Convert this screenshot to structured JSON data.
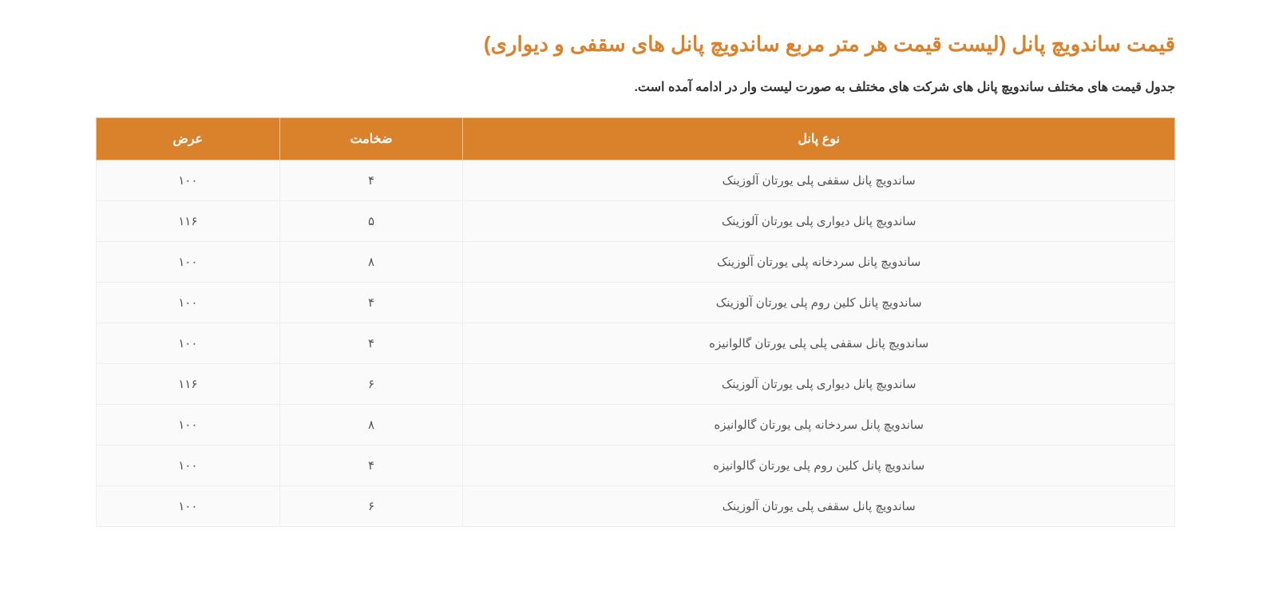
{
  "title": "قیمت ساندویچ پانل (لیست قیمت هر متر مربع ساندویچ پانل های سقفی و دیواری)",
  "intro": "جدول قیمت های مختلف ساندویچ پانل های شرکت های مختلف به صورت لیست وار در ادامه آمده است.",
  "table": {
    "columns": [
      "نوع پانل",
      "ضخامت",
      "عرض"
    ],
    "rows": [
      {
        "type": "ساندویچ پانل سقفی پلی یورتان آلوزینک",
        "thickness": "۴",
        "width": "۱۰۰"
      },
      {
        "type": "ساندویچ پانل دیواری پلی یورتان آلوزینک",
        "thickness": "۵",
        "width": "۱۱۶"
      },
      {
        "type": "ساندویچ پانل سردخانه پلی یورتان آلوزینک",
        "thickness": "۸",
        "width": "۱۰۰"
      },
      {
        "type": "ساندویچ پانل کلین روم پلی یورتان آلوزینک",
        "thickness": "۴",
        "width": "۱۰۰"
      },
      {
        "type": "ساندویچ پانل سقفی پلی پلی یورتان گالوانیزه",
        "thickness": "۴",
        "width": "۱۰۰"
      },
      {
        "type": "ساندویچ پانل دیواری پلی یورتان آلوزینک",
        "thickness": "۶",
        "width": "۱۱۶"
      },
      {
        "type": "ساندویچ پانل سردخانه پلی یورتان گالوانیزه",
        "thickness": "۸",
        "width": "۱۰۰"
      },
      {
        "type": "ساندویچ پانل کلین روم پلی یورتان گالوانیزه",
        "thickness": "۴",
        "width": "۱۰۰"
      },
      {
        "type": "ساندویچ پانل سقفی پلی یورتان آلوزینک",
        "thickness": "۶",
        "width": "۱۰۰"
      }
    ],
    "header_bg": "#d9822b",
    "header_fg": "#ffffff",
    "row_bg": "#fafafa",
    "row_fg": "#555555",
    "border_color": "#eeeeee"
  }
}
